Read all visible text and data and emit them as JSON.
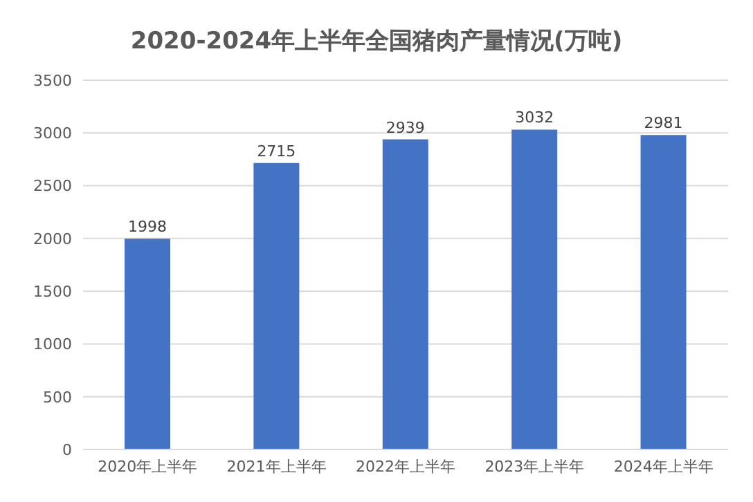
{
  "chart_data": {
    "type": "bar",
    "title": "2020-2024年上半年全国猪肉产量情况(万吨)",
    "categories": [
      "2020年上半年",
      "2021年上半年",
      "2022年上半年",
      "2023年上半年",
      "2024年上半年"
    ],
    "values": [
      1998,
      2715,
      2939,
      3032,
      2981
    ],
    "color": "#4472c4",
    "ylim": [
      0,
      3500
    ],
    "yticks": [
      0,
      500,
      1000,
      1500,
      2000,
      2500,
      3000,
      3500
    ],
    "grid": "y",
    "data_labels": true
  }
}
